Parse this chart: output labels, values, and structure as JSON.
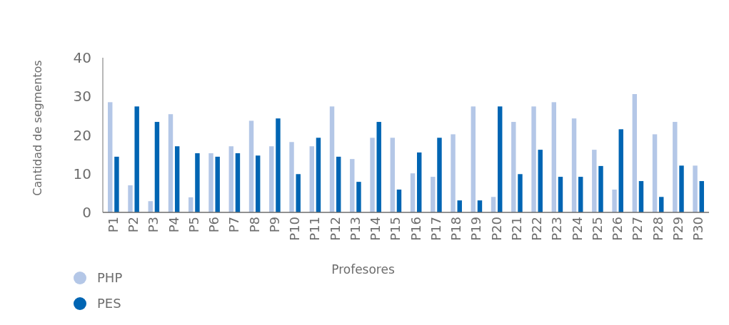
{
  "chart_data": {
    "type": "bar",
    "xlabel": "Profesores",
    "ylabel": "Cantidad de segmentos",
    "categories": [
      "P1",
      "P2",
      "P3",
      "P4",
      "P5",
      "P6",
      "P7",
      "P8",
      "P9",
      "P10",
      "P11",
      "P12",
      "P13",
      "P14",
      "P15",
      "P16",
      "P17",
      "P18",
      "P19",
      "P20",
      "P21",
      "P22",
      "P23",
      "P24",
      "P25",
      "P26",
      "P27",
      "P28",
      "P29",
      "P30"
    ],
    "series": [
      {
        "name": "PHP",
        "color": "#b4c7e7",
        "values": [
          28.5,
          7,
          2.9,
          25.4,
          3.9,
          15.3,
          17.1,
          23.7,
          17.1,
          18.2,
          17.1,
          27.4,
          13.8,
          19.3,
          19.3,
          10.1,
          9.2,
          20.2,
          27.4,
          4,
          23.4,
          27.4,
          28.5,
          24.3,
          16.2,
          5.9,
          30.6,
          20.2,
          23.4,
          12.1
        ]
      },
      {
        "name": "PES",
        "color": "#0065b3",
        "values": [
          14.4,
          27.4,
          23.4,
          17.1,
          15.3,
          14.4,
          15.3,
          14.7,
          24.3,
          9.9,
          19.3,
          14.4,
          7.9,
          23.4,
          5.9,
          15.5,
          19.3,
          3.1,
          3.1,
          27.4,
          9.9,
          16.2,
          9.2,
          9.2,
          12,
          21.5,
          8.1,
          4,
          12.1,
          8.1
        ]
      }
    ],
    "ylim": [
      0,
      40
    ],
    "yticks": [
      0,
      10,
      20,
      30,
      40
    ],
    "grid": false,
    "legend": "bottom left"
  }
}
